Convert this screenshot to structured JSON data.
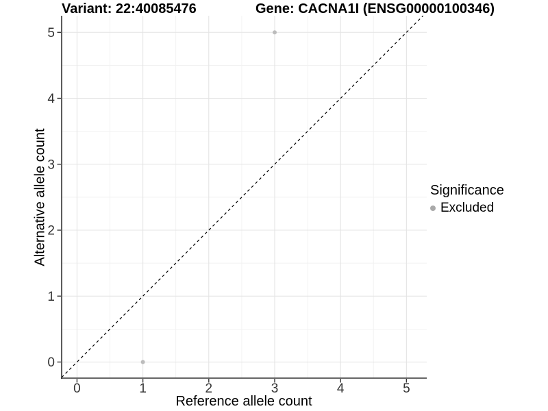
{
  "titles": {
    "variant": "Variant: 22:40085476",
    "gene": "Gene: CACNA1I (ENSG00000100346)"
  },
  "chart_data": {
    "type": "scatter",
    "xlabel": "Reference allele count",
    "ylabel": "Alternative allele count",
    "xlim": [
      -0.233,
      5.308
    ],
    "ylim": [
      -0.244,
      5.252
    ],
    "xticks": [
      "0",
      "1",
      "2",
      "3",
      "4",
      "5"
    ],
    "xtick_values": [
      0,
      1,
      2,
      3,
      4,
      5
    ],
    "yticks": [
      "0",
      "1",
      "2",
      "3",
      "4",
      "5"
    ],
    "ytick_values": [
      0,
      1,
      2,
      3,
      4,
      5
    ],
    "grid": "major+minor",
    "minor_step": 0.5,
    "identity_line": {
      "equation": "y = x",
      "style": "dashed",
      "color": "#000000"
    },
    "series": [
      {
        "name": "Excluded",
        "color": "#bcbcbc",
        "points": [
          [
            1,
            0
          ],
          [
            3,
            5
          ]
        ]
      }
    ],
    "legend": {
      "title": "Significance",
      "position": "right",
      "items": [
        {
          "label": "Excluded",
          "color": "#a9a9a9"
        }
      ]
    },
    "colors": {
      "grid_major": "#e4e4e4",
      "grid_minor": "#f1f1f1",
      "axis_line": "#333333",
      "tick_mark": "#333333",
      "tick_label": "#333333"
    }
  }
}
